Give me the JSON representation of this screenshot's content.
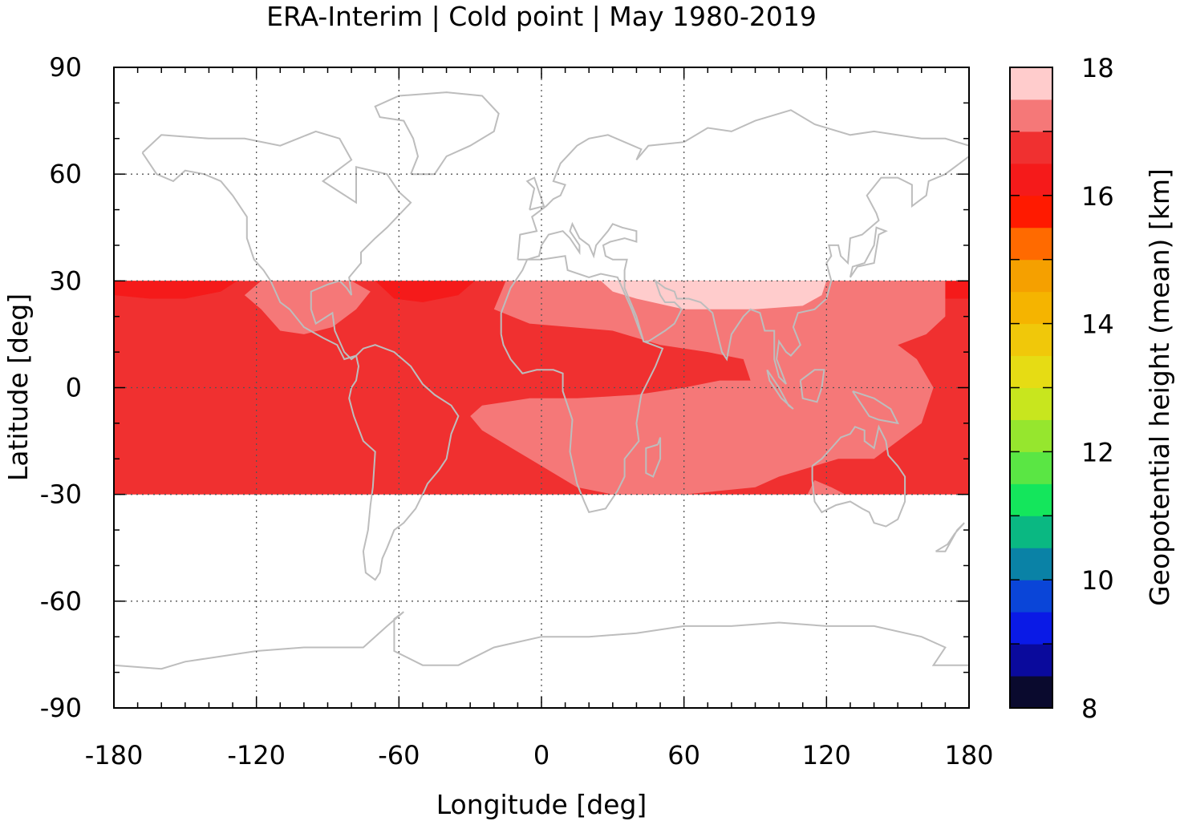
{
  "chart_data": {
    "type": "heatmap",
    "title": "ERA-Interim | Cold point | May 1980-2019",
    "xlabel": "Longitude [deg]",
    "ylabel": "Latitude [deg]",
    "colorbar_label": "Geopotential height (mean) [km]",
    "xlim": [
      -180,
      180
    ],
    "ylim": [
      -90,
      90
    ],
    "x_ticks": [
      -180,
      -120,
      -60,
      0,
      60,
      120,
      180
    ],
    "y_ticks": [
      -90,
      -60,
      -30,
      0,
      30,
      60,
      90
    ],
    "x_tick_labels": [
      "-180",
      "-120",
      "-60",
      "0",
      "60",
      "120",
      "180"
    ],
    "y_tick_labels": [
      "-90",
      "-60",
      "-30",
      "0",
      "30",
      "60",
      "90"
    ],
    "grid": true,
    "data_lat_range": [
      -30,
      30
    ],
    "colorbar": {
      "min": 8,
      "max": 18,
      "step": 0.5,
      "ticks": [
        8,
        10,
        12,
        14,
        16,
        18
      ],
      "tick_labels": [
        "8",
        "10",
        "12",
        "14",
        "16",
        "18"
      ],
      "colors": [
        "#0a0a2e",
        "#0a0a9c",
        "#0a1ae6",
        "#0a45d8",
        "#0a82a6",
        "#0ab882",
        "#14e65c",
        "#5ae644",
        "#96e62e",
        "#c8e61e",
        "#e6dc14",
        "#f0c80a",
        "#f5b400",
        "#f5a000",
        "#ff6a00",
        "#ff1a00",
        "#f51a1a",
        "#f03030",
        "#f57878",
        "#ffcccc"
      ]
    },
    "regions": [
      {
        "level": 16.75,
        "color": "#f03030",
        "poly": [
          [
            -180,
            30
          ],
          [
            180,
            30
          ],
          [
            180,
            -30
          ],
          [
            -180,
            -30
          ]
        ]
      },
      {
        "level": 16.25,
        "color": "#f51a1a",
        "poly": [
          [
            -180,
            30
          ],
          [
            -128,
            30
          ],
          [
            -135,
            27
          ],
          [
            -150,
            25
          ],
          [
            -165,
            25
          ],
          [
            -180,
            26
          ]
        ]
      },
      {
        "level": 16.25,
        "color": "#f51a1a",
        "poly": [
          [
            -70,
            30
          ],
          [
            -28,
            30
          ],
          [
            -35,
            26
          ],
          [
            -50,
            24
          ],
          [
            -62,
            25
          ]
        ]
      },
      {
        "level": 16.25,
        "color": "#f51a1a",
        "poly": [
          [
            150,
            30
          ],
          [
            180,
            30
          ],
          [
            180,
            25
          ],
          [
            165,
            25
          ]
        ]
      },
      {
        "level": 17.25,
        "color": "#f57878",
        "poly": [
          [
            -118,
            30
          ],
          [
            -80,
            30
          ],
          [
            -72,
            27
          ],
          [
            -78,
            22
          ],
          [
            -88,
            17
          ],
          [
            -100,
            15
          ],
          [
            -110,
            16
          ],
          [
            -118,
            22
          ],
          [
            -125,
            26
          ]
        ]
      },
      {
        "level": 17.25,
        "color": "#f57878",
        "poly": [
          [
            -15,
            30
          ],
          [
            170,
            30
          ],
          [
            170,
            20
          ],
          [
            162,
            15
          ],
          [
            150,
            12
          ],
          [
            158,
            8
          ],
          [
            165,
            0
          ],
          [
            160,
            -10
          ],
          [
            150,
            -15
          ],
          [
            140,
            -20
          ],
          [
            125,
            -20
          ],
          [
            115,
            -22
          ],
          [
            100,
            -25
          ],
          [
            90,
            -28
          ],
          [
            60,
            -30
          ],
          [
            40,
            -30
          ],
          [
            30,
            -30
          ],
          [
            15,
            -28
          ],
          [
            -5,
            -20
          ],
          [
            -25,
            -12
          ],
          [
            -30,
            -8
          ],
          [
            -25,
            -5
          ],
          [
            -5,
            -3
          ],
          [
            15,
            -3
          ],
          [
            40,
            -2
          ],
          [
            60,
            0
          ],
          [
            75,
            2
          ],
          [
            88,
            2
          ],
          [
            85,
            8
          ],
          [
            70,
            10
          ],
          [
            50,
            12
          ],
          [
            30,
            16
          ],
          [
            -5,
            18
          ],
          [
            -20,
            22
          ]
        ]
      },
      {
        "level": 17.25,
        "color": "#f57878",
        "poly": [
          [
            112,
            -30
          ],
          [
            128,
            -30
          ],
          [
            122,
            -28
          ],
          [
            115,
            -26
          ]
        ]
      },
      {
        "level": 17.75,
        "color": "#ffcccc",
        "poly": [
          [
            25,
            30
          ],
          [
            120,
            30
          ],
          [
            118,
            26
          ],
          [
            110,
            23
          ],
          [
            90,
            22
          ],
          [
            60,
            22
          ],
          [
            40,
            25
          ],
          [
            30,
            27
          ]
        ]
      }
    ]
  }
}
